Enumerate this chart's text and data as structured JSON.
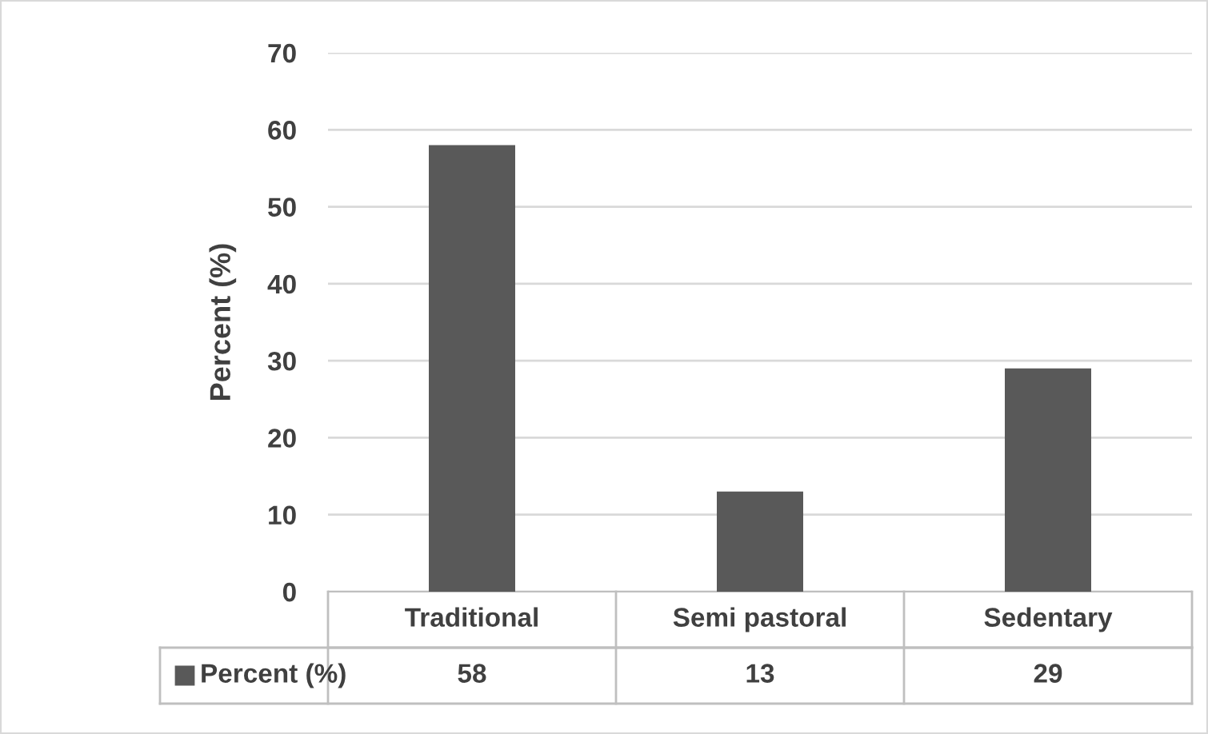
{
  "chart_data": {
    "type": "bar",
    "ylabel": "Percent (%)",
    "categories": [
      "Traditional",
      "Semi pastoral",
      "Sedentary"
    ],
    "series": [
      {
        "name": "Percent (%)",
        "color": "#595959",
        "values": [
          58,
          13,
          29
        ]
      }
    ],
    "ylim": [
      0,
      70
    ],
    "yticks": [
      0,
      10,
      20,
      30,
      40,
      50,
      60,
      70
    ],
    "grid": "y",
    "data_labels": true
  }
}
